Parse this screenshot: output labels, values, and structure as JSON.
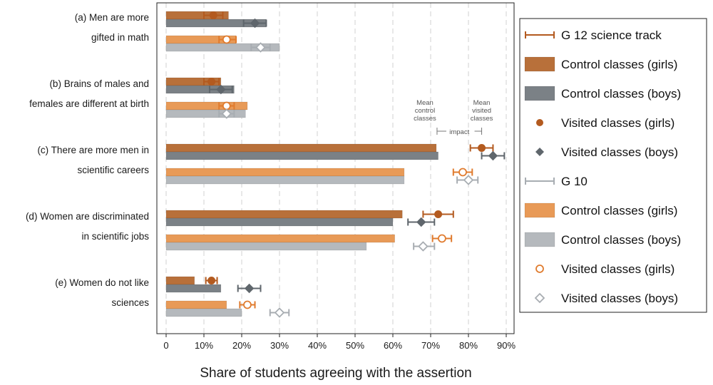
{
  "chart_data": {
    "type": "bar",
    "orientation": "horizontal",
    "xlabel": "Share of students agreeing with the assertion",
    "xlim": [
      0,
      90
    ],
    "xticks": [
      0,
      10,
      20,
      30,
      40,
      50,
      60,
      70,
      80,
      90
    ],
    "xtick_labels": [
      "0",
      "10%",
      "20%",
      "30%",
      "40%",
      "50%",
      "60%",
      "70%",
      "80%",
      "90%"
    ],
    "grid": "vertical dashed",
    "legend_position": "right",
    "colors": {
      "g12_girls": "#b8703a",
      "g12_boys": "#7b8186",
      "g10_girls": "#e89a57",
      "g10_boys": "#b5b9bd",
      "g12_girls_marker": "#b35a1f",
      "g12_boys_marker": "#5f666c",
      "g10_girls_marker": "#e07b2e",
      "g10_boys_marker": "#a8adb2"
    },
    "categories": [
      {
        "line1": "(a) Men are more",
        "line2": "gifted in math"
      },
      {
        "line1": "(b) Brains of males and",
        "line2": "females are different at birth"
      },
      {
        "line1": "(c) There are more men in",
        "line2": "scientific careers"
      },
      {
        "line1": "(d) Women are discriminated",
        "line2": "in scientific jobs"
      },
      {
        "line1": "(e) Women do not like",
        "line2": "sciences"
      }
    ],
    "series": [
      {
        "key": "g12_girls",
        "control": [
          16.5,
          14.5,
          71.5,
          62.5,
          7.5
        ],
        "visited": [
          12.5,
          12.0,
          83.5,
          72.0,
          12.0
        ],
        "ci": [
          [
            10.0,
            15.0
          ],
          [
            10.0,
            14.0
          ],
          [
            80.5,
            86.5
          ],
          [
            68.0,
            76.0
          ],
          [
            10.5,
            13.5
          ]
        ]
      },
      {
        "key": "g12_boys",
        "control": [
          26.5,
          18.0,
          72.0,
          60.0,
          14.5
        ],
        "visited": [
          23.5,
          14.5,
          86.5,
          67.5,
          22.0
        ],
        "ci": [
          [
            20.5,
            26.5
          ],
          [
            11.5,
            17.5
          ],
          [
            83.5,
            89.5
          ],
          [
            64.0,
            71.0
          ],
          [
            19.0,
            25.0
          ]
        ]
      },
      {
        "key": "g10_girls",
        "control": [
          18.5,
          21.5,
          63.0,
          60.5,
          16.0
        ],
        "visited": [
          16.0,
          16.0,
          78.5,
          73.0,
          21.5
        ],
        "ci": [
          [
            14.0,
            18.5
          ],
          [
            14.0,
            18.0
          ],
          [
            76.0,
            81.0
          ],
          [
            70.5,
            75.5
          ],
          [
            19.5,
            23.5
          ]
        ]
      },
      {
        "key": "g10_boys",
        "control": [
          30.0,
          21.0,
          63.0,
          53.0,
          20.0
        ],
        "visited": [
          25.0,
          16.0,
          80.0,
          68.0,
          30.0
        ],
        "ci": [
          [
            22.5,
            27.5
          ],
          [
            14.0,
            18.0
          ],
          [
            77.0,
            82.5
          ],
          [
            65.5,
            71.0
          ],
          [
            27.5,
            32.5
          ]
        ]
      }
    ],
    "annotation": {
      "control_label": [
        "Mean",
        "control",
        "classes"
      ],
      "visited_label": [
        "Mean",
        "visited",
        "classes"
      ],
      "impact_label": "impact",
      "control_value": 71.5,
      "visited_value": 83.5
    },
    "legend": [
      {
        "key": "g12_girls",
        "kind": "ci",
        "label": "G 12 science track"
      },
      {
        "key": "g12_girls",
        "kind": "bar",
        "label": "Control classes (girls)"
      },
      {
        "key": "g12_boys",
        "kind": "bar",
        "label": "Control classes (boys)"
      },
      {
        "key": "g12_girls",
        "kind": "dot",
        "label": "Visited classes (girls)"
      },
      {
        "key": "g12_boys",
        "kind": "diamond",
        "label": "Visited classes (boys)"
      },
      {
        "key": "g10_boys",
        "kind": "ci",
        "label": "G 10"
      },
      {
        "key": "g10_girls",
        "kind": "bar",
        "label": "Control classes (girls)"
      },
      {
        "key": "g10_boys",
        "kind": "bar",
        "label": "Control classes (boys)"
      },
      {
        "key": "g10_girls",
        "kind": "circle-open",
        "label": "Visited classes (girls)"
      },
      {
        "key": "g10_boys",
        "kind": "diamond-open",
        "label": "Visited classes (boys)"
      }
    ]
  }
}
